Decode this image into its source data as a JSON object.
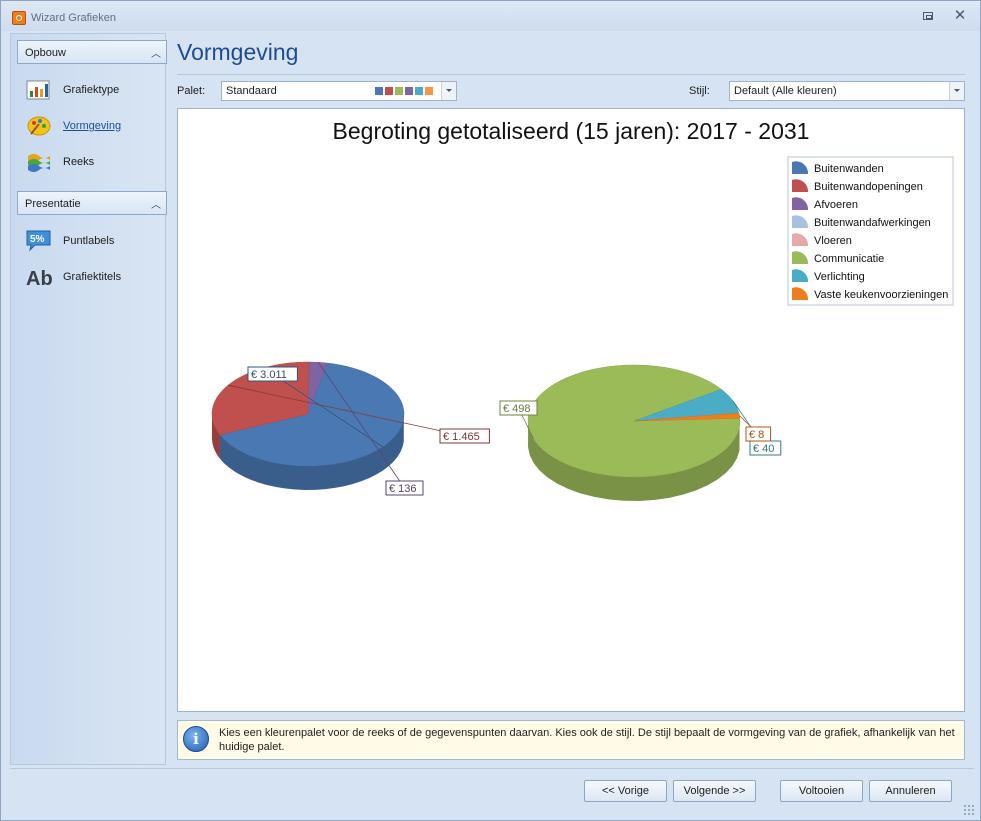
{
  "window": {
    "title": "Wizard Grafieken",
    "close_glyph": "✕"
  },
  "sidebar": {
    "groups": [
      {
        "header": "Opbouw",
        "items": [
          {
            "label": "Grafiektype",
            "icon": "chart-type-icon"
          },
          {
            "label": "Vormgeving",
            "icon": "palette-icon",
            "active": true
          },
          {
            "label": "Reeks",
            "icon": "series-icon"
          }
        ]
      },
      {
        "header": "Presentatie",
        "items": [
          {
            "label": "Puntlabels",
            "icon": "point-labels-icon",
            "icon_text": "5%"
          },
          {
            "label": "Grafiektitels",
            "icon": "chart-titles-icon",
            "icon_text": "Ab"
          }
        ]
      }
    ]
  },
  "page": {
    "title": "Vormgeving"
  },
  "palet": {
    "label": "Palet:",
    "value": "Standaard",
    "swatches": [
      "#4a78b3",
      "#c0504d",
      "#9bbb59",
      "#8064a2",
      "#4bacc6",
      "#f79646"
    ]
  },
  "stijl": {
    "label": "Stijl:",
    "value": "Default (Alle kleuren)"
  },
  "chart_data": {
    "type": "pie",
    "title": "Begroting getotaliseerd (15 jaren): 2017 - 2031",
    "legend_position": "top-right",
    "legend": [
      {
        "name": "Buitenwanden",
        "color": "#4a78b3"
      },
      {
        "name": "Buitenwandopeningen",
        "color": "#c0504d"
      },
      {
        "name": "Afvoeren",
        "color": "#8064a2"
      },
      {
        "name": "Buitenwandafwerkingen",
        "color": "#a9c1e0"
      },
      {
        "name": "Vloeren",
        "color": "#e5aaa8"
      },
      {
        "name": "Communicatie",
        "color": "#9bbb59"
      },
      {
        "name": "Verlichting",
        "color": "#4bacc6"
      },
      {
        "name": "Vaste keukenvoorzieningen",
        "color": "#f07d1b"
      }
    ],
    "pies": [
      {
        "slices": [
          {
            "name": "Buitenwanden",
            "value": 3011,
            "label": "€ 3.011",
            "color": "#4a78b3"
          },
          {
            "name": "Buitenwandopeningen",
            "value": 1465,
            "label": "€ 1.465",
            "color": "#c0504d"
          },
          {
            "name": "Afvoeren",
            "value": 136,
            "label": "€ 136",
            "color": "#8064a2"
          }
        ]
      },
      {
        "slices": [
          {
            "name": "Communicatie",
            "value": 498,
            "label": "€ 498",
            "color": "#9bbb59"
          },
          {
            "name": "Verlichting",
            "value": 40,
            "label": "€ 40",
            "color": "#4bacc6"
          },
          {
            "name": "Vaste keukenvoorzieningen",
            "value": 8,
            "label": "€ 8",
            "color": "#f07d1b"
          }
        ]
      }
    ]
  },
  "info": {
    "text": "Kies een kleurenpalet voor de reeks of de gegevenspunten daarvan. Kies ook de stijl. De stijl bepaalt de vormgeving van de grafiek, afhankelijk van het huidige palet."
  },
  "buttons": {
    "back": "<< Vorige",
    "next": "Volgende >>",
    "finish": "Voltooien",
    "cancel": "Annuleren"
  }
}
